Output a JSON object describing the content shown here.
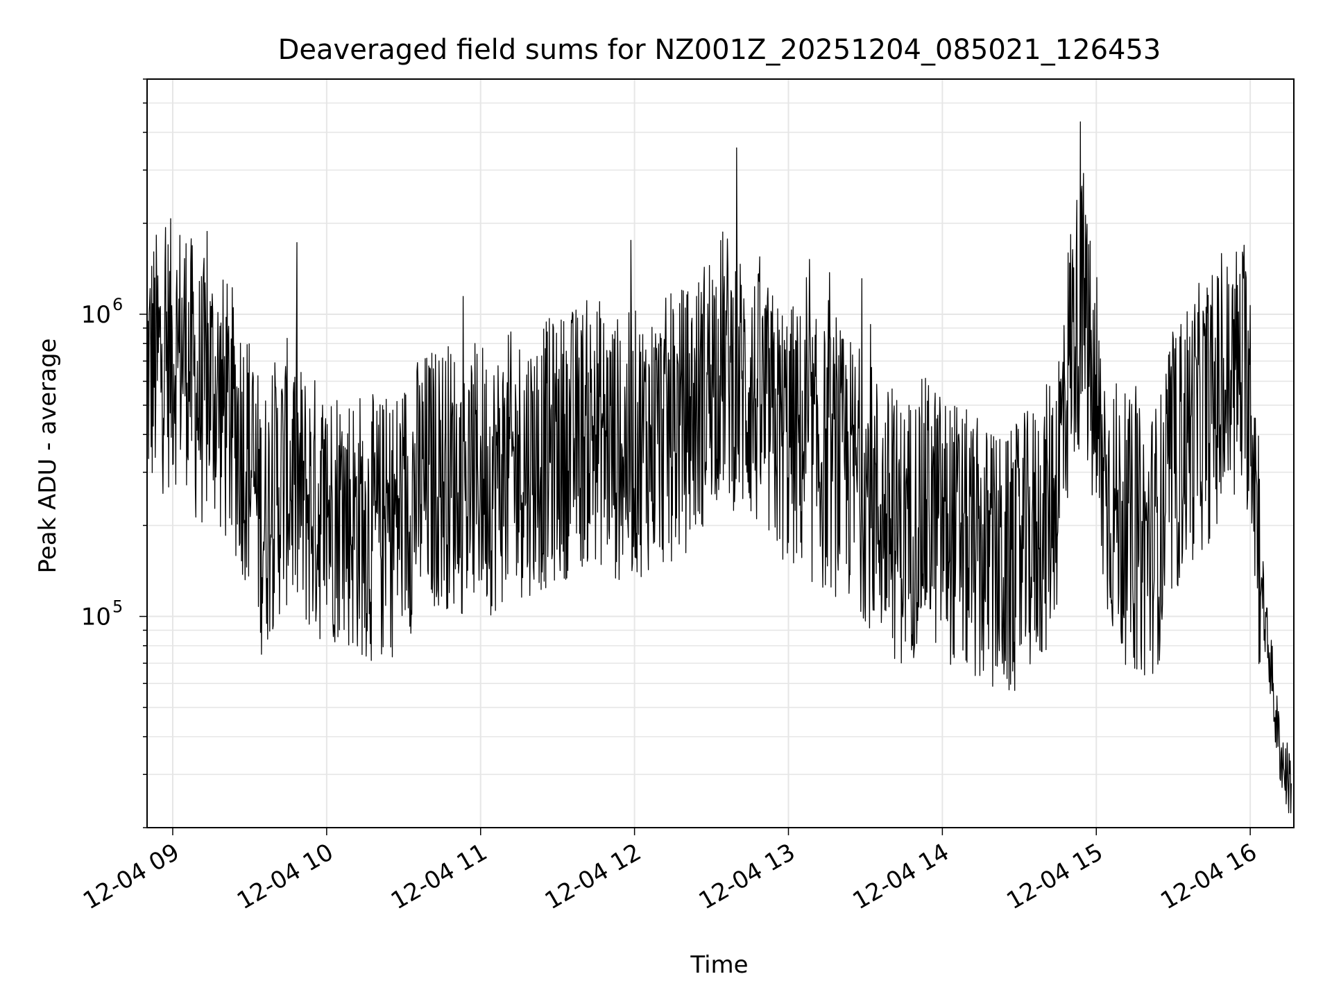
{
  "chart_data": {
    "type": "line",
    "title": "Deaveraged field sums for NZ001Z_20251204_085021_126453",
    "xlabel": "Time",
    "ylabel": "Peak ADU - average",
    "x_tick_labels": [
      "12-04 09",
      "12-04 10",
      "12-04 11",
      "12-04 12",
      "12-04 13",
      "12-04 14",
      "12-04 15",
      "12-04 16"
    ],
    "y_tick_labels": [
      {
        "base": "10",
        "exp": "5",
        "value": 100000
      },
      {
        "base": "10",
        "exp": "6",
        "value": 1000000
      }
    ],
    "xlim": [
      "2025-12-04 08:50",
      "2025-12-04 16:17"
    ],
    "ylim": [
      20000,
      6000000
    ],
    "yscale": "log",
    "grid": true,
    "line_color": "#000000",
    "grid_color": "#e6e6e6",
    "series": [
      {
        "x": [
          "08:50",
          "08:55",
          "09:00",
          "09:05",
          "09:10",
          "09:15",
          "09:20",
          "09:25",
          "09:30",
          "09:35",
          "09:40",
          "09:45",
          "09:50",
          "09:55",
          "10:00",
          "10:05",
          "10:10",
          "10:15",
          "10:20",
          "10:25",
          "10:30",
          "10:35",
          "10:40",
          "10:45",
          "10:50",
          "10:55",
          "11:00",
          "11:05",
          "11:10",
          "11:15",
          "11:20",
          "11:25",
          "11:30",
          "11:35",
          "11:40",
          "11:45",
          "11:50",
          "11:55",
          "12:00",
          "12:05",
          "12:10",
          "12:15",
          "12:20",
          "12:25",
          "12:30",
          "12:35",
          "12:40",
          "12:45",
          "12:50",
          "12:55",
          "13:00",
          "13:05",
          "13:10",
          "13:15",
          "13:20",
          "13:25",
          "13:30",
          "13:35",
          "13:40",
          "13:45",
          "13:50",
          "13:55",
          "14:00",
          "14:05",
          "14:10",
          "14:15",
          "14:20",
          "14:25",
          "14:30",
          "14:35",
          "14:40",
          "14:45",
          "14:50",
          "14:55",
          "15:00",
          "15:05",
          "15:10",
          "15:15",
          "15:20",
          "15:25",
          "15:30",
          "15:35",
          "15:40",
          "15:45",
          "15:50",
          "15:55",
          "16:00",
          "16:02",
          "16:04",
          "16:06",
          "16:08",
          "16:10",
          "16:12",
          "16:14",
          "16:16"
        ],
        "values": [
          650000,
          700000,
          750000,
          780000,
          520000,
          600000,
          480000,
          420000,
          330000,
          200000,
          260000,
          300000,
          250000,
          230000,
          220000,
          230000,
          210000,
          200000,
          190000,
          200000,
          230000,
          260000,
          280000,
          300000,
          290000,
          270000,
          300000,
          280000,
          310000,
          320000,
          330000,
          340000,
          360000,
          380000,
          400000,
          420000,
          380000,
          350000,
          370000,
          390000,
          400000,
          420000,
          450000,
          500000,
          650000,
          700000,
          600000,
          550000,
          480000,
          420000,
          400000,
          380000,
          350000,
          330000,
          320000,
          300000,
          270000,
          230000,
          200000,
          190000,
          210000,
          230000,
          200000,
          190000,
          170000,
          160000,
          150000,
          140000,
          160000,
          180000,
          200000,
          300000,
          800000,
          1100000,
          400000,
          250000,
          200000,
          180000,
          170000,
          200000,
          300000,
          400000,
          450000,
          500000,
          550000,
          650000,
          600000,
          300000,
          150000,
          90000,
          70000,
          45000,
          35000,
          30000,
          28000
        ]
      }
    ]
  }
}
